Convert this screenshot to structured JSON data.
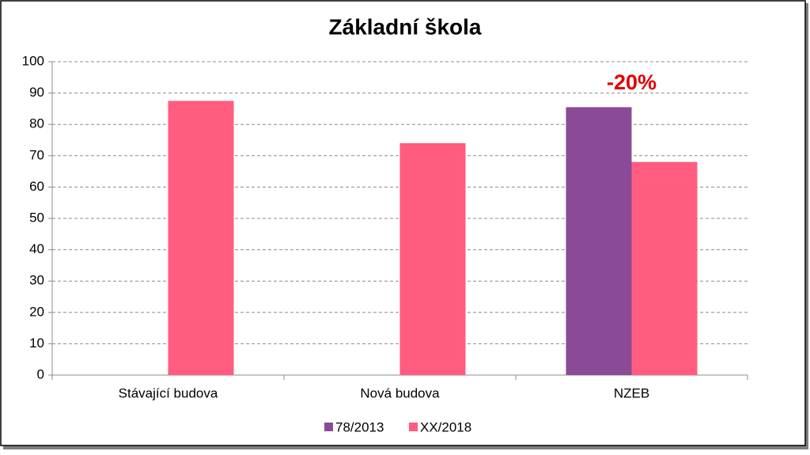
{
  "chart_data": {
    "type": "bar",
    "title": "Základní škola",
    "categories": [
      "Stávající budova",
      "Nová budova",
      "NZEB"
    ],
    "series": [
      {
        "name": "78/2013",
        "color": "#8b4a96",
        "values": [
          null,
          null,
          85.5
        ]
      },
      {
        "name": "XX/2018",
        "color": "#ff5c80",
        "values": [
          87.5,
          74,
          68
        ]
      }
    ],
    "ylim": [
      0,
      100
    ],
    "yticks": [
      0,
      10,
      20,
      30,
      40,
      50,
      60,
      70,
      80,
      90,
      100
    ],
    "grid": true,
    "legend": "bottom",
    "annotation": "-20%",
    "annotation_color": "#e00000"
  }
}
